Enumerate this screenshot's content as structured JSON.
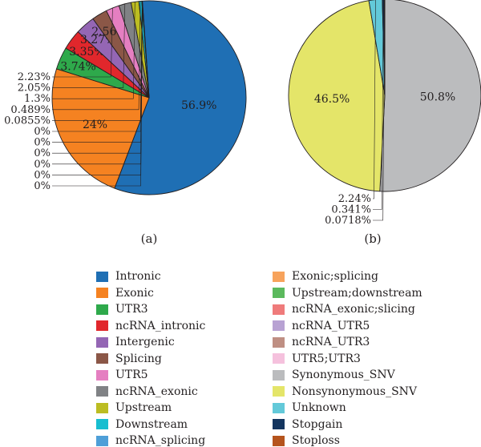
{
  "chart_data": [
    {
      "type": "pie",
      "panel_label": "(a)",
      "slices": [
        {
          "name": "Intronic",
          "value": 56.9,
          "label": "56.9%",
          "color": "#1f6fb4"
        },
        {
          "name": "Exonic",
          "value": 24,
          "label": "24%",
          "color": "#f58221"
        },
        {
          "name": "UTR3",
          "value": 3.74,
          "label": "3.74%",
          "color": "#2ea94b"
        },
        {
          "name": "ncRNA_intronic",
          "value": 3.35,
          "label": "3.35%",
          "color": "#e1272c"
        },
        {
          "name": "Intergenic",
          "value": 3.27,
          "label": "3.27%",
          "color": "#9466b4"
        },
        {
          "name": "Splicing",
          "value": 2.56,
          "label": "2.56%",
          "color": "#8b5747"
        },
        {
          "name": "UTR5",
          "value": 2.23,
          "label": "2.23%",
          "color": "#e57fc1"
        },
        {
          "name": "ncRNA_exonic",
          "value": 2.05,
          "label": "2.05%",
          "color": "#808285"
        },
        {
          "name": "Upstream",
          "value": 1.3,
          "label": "1.3%",
          "color": "#bcbd22"
        },
        {
          "name": "Downstream",
          "value": 0.489,
          "label": "0.489%",
          "color": "#17bed0"
        },
        {
          "name": "ncRNA_splicing",
          "value": 0.0855,
          "label": "0.0855%",
          "color": "#4e9fd8"
        },
        {
          "name": "Exonic;splicing",
          "value": 0,
          "label": "0%",
          "color": "#f7a35c"
        },
        {
          "name": "Upstream;downstream",
          "value": 0,
          "label": "0%",
          "color": "#5bb95d"
        },
        {
          "name": "ncRNA_exonic;slicing",
          "value": 0,
          "label": "0%",
          "color": "#ef7b7b"
        },
        {
          "name": "ncRNA_UTR5",
          "value": 0,
          "label": "0%",
          "color": "#b8a2d3"
        },
        {
          "name": "ncRNA_UTR3",
          "value": 0,
          "label": "0%",
          "color": "#bf8f83"
        },
        {
          "name": "UTR5;UTR3",
          "value": 0,
          "label": "0%",
          "color": "#f5c1dd"
        }
      ]
    },
    {
      "type": "pie",
      "panel_label": "(b)",
      "slices": [
        {
          "name": "Synonymous_SNV",
          "value": 50.8,
          "label": "50.8%",
          "color": "#bbbcbe"
        },
        {
          "name": "Nonsynonymous_SNV",
          "value": 46.5,
          "label": "46.5%",
          "color": "#e4e569"
        },
        {
          "name": "Unknown",
          "value": 2.24,
          "label": "2.24%",
          "color": "#63c9d9"
        },
        {
          "name": "Stopgain",
          "value": 0.341,
          "label": "0.341%",
          "color": "#14355f"
        },
        {
          "name": "Stoploss",
          "value": 0.0718,
          "label": "0.0718%",
          "color": "#b5541d"
        }
      ]
    }
  ],
  "legend": {
    "columns": [
      [
        {
          "label": "Intronic",
          "color": "#1f6fb4"
        },
        {
          "label": "Exonic",
          "color": "#f58221"
        },
        {
          "label": "UTR3",
          "color": "#2ea94b"
        },
        {
          "label": "ncRNA_intronic",
          "color": "#e1272c"
        },
        {
          "label": "Intergenic",
          "color": "#9466b4"
        },
        {
          "label": "Splicing",
          "color": "#8b5747"
        },
        {
          "label": "UTR5",
          "color": "#e57fc1"
        },
        {
          "label": "ncRNA_exonic",
          "color": "#808285"
        },
        {
          "label": "Upstream",
          "color": "#bcbd22"
        },
        {
          "label": "Downstream",
          "color": "#17bed0"
        },
        {
          "label": "ncRNA_splicing",
          "color": "#4e9fd8"
        }
      ],
      [
        {
          "label": "Exonic;splicing",
          "color": "#f7a35c"
        },
        {
          "label": "Upstream;downstream",
          "color": "#5bb95d"
        },
        {
          "label": "ncRNA_exonic;slicing",
          "color": "#ef7b7b"
        },
        {
          "label": "ncRNA_UTR5",
          "color": "#b8a2d3"
        },
        {
          "label": "ncRNA_UTR3",
          "color": "#bf8f83"
        },
        {
          "label": "UTR5;UTR3",
          "color": "#f5c1dd"
        },
        {
          "label": "Synonymous_SNV",
          "color": "#bbbcbe"
        },
        {
          "label": "Nonsynonymous_SNV",
          "color": "#e4e569"
        },
        {
          "label": "Unknown",
          "color": "#63c9d9"
        },
        {
          "label": "Stopgain",
          "color": "#14355f"
        },
        {
          "label": "Stoploss",
          "color": "#b5541d"
        }
      ]
    ]
  }
}
